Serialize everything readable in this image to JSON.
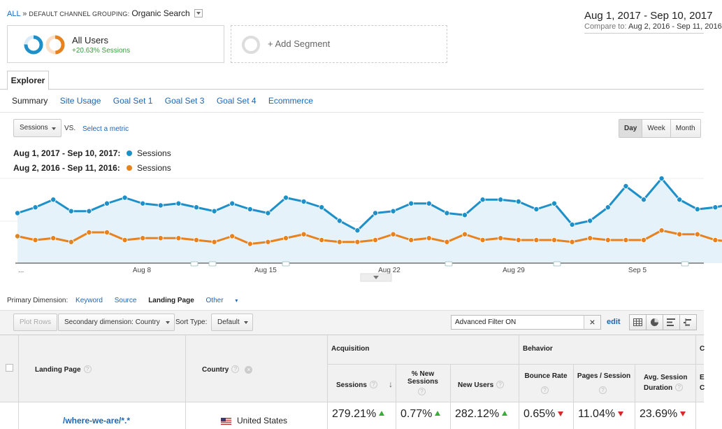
{
  "breadcrumb": {
    "all": "ALL",
    "sep": "»",
    "dimension": "DEFAULT CHANNEL GROUPING:",
    "value": "Organic Search"
  },
  "date_range": {
    "primary": "Aug 1, 2017 - Sep 10, 2017",
    "compare_label": "Compare to:",
    "compare_value": "Aug 2, 2016 - Sep 11, 2016"
  },
  "segments": {
    "all_users": {
      "label": "All Users",
      "sub": "+20.63% Sessions"
    },
    "add_label": "+ Add Segment"
  },
  "explorer_tab": "Explorer",
  "subtabs": [
    "Summary",
    "Site Usage",
    "Goal Set 1",
    "Goal Set 3",
    "Goal Set 4",
    "Ecommerce"
  ],
  "metric": {
    "selected": "Sessions",
    "vs": "VS.",
    "select_metric": "Select a metric"
  },
  "granularity": [
    "Day",
    "Week",
    "Month"
  ],
  "legend": [
    {
      "date": "Aug 1, 2017 - Sep 10, 2017:",
      "metric": "Sessions",
      "color": "#1f8fc8"
    },
    {
      "date": "Aug 2, 2016 - Sep 11, 2016:",
      "metric": "Sessions",
      "color": "#e8821e"
    }
  ],
  "chart_data": {
    "type": "line",
    "x_ticks": [
      "...",
      "Aug 8",
      "Aug 15",
      "Aug 22",
      "Aug 29",
      "Sep 5"
    ],
    "series": [
      {
        "name": "Sessions",
        "color": "#1f8fc8",
        "values": [
          26,
          29,
          33,
          27,
          27,
          31,
          34,
          31,
          30,
          31,
          29,
          27,
          31,
          28,
          26,
          34,
          32,
          29,
          22,
          17,
          26,
          27,
          31,
          31,
          26,
          25,
          33,
          33,
          32,
          28,
          31,
          20,
          22,
          29,
          40,
          33,
          44,
          33,
          28,
          29,
          31
        ]
      },
      {
        "name": "Sessions",
        "color": "#e8821e",
        "values": [
          14,
          12,
          13,
          11,
          16,
          16,
          12,
          13,
          13,
          13,
          12,
          11,
          14,
          10,
          11,
          13,
          15,
          12,
          11,
          11,
          12,
          15,
          12,
          13,
          11,
          15,
          12,
          13,
          12,
          12,
          12,
          11,
          13,
          12,
          12,
          12,
          17,
          15,
          15,
          12,
          11
        ]
      }
    ]
  },
  "primary_dimension": {
    "label": "Primary Dimension:",
    "options": [
      "Keyword",
      "Source",
      "Landing Page"
    ],
    "active": "Landing Page",
    "other": "Other"
  },
  "toolbar": {
    "plot_rows": "Plot Rows",
    "secondary_dimension": "Secondary dimension: Country",
    "sort_label": "Sort Type:",
    "sort_value": "Default",
    "filter": "Advanced Filter ON",
    "filter_clear": "×",
    "edit": "edit"
  },
  "table": {
    "col_landing": "Landing Page",
    "col_country": "Country",
    "group_acquisition": "Acquisition",
    "group_behavior": "Behavior",
    "group_conv": "C",
    "cols": [
      "Sessions",
      "% New Sessions",
      "New Users",
      "Bounce Rate",
      "Pages / Session",
      "Avg. Session Duration",
      "E C"
    ],
    "rows": [
      {
        "landing": "/where-we-are/*.*",
        "country": "United States",
        "sessions": "279.21%",
        "new_sessions": "0.77%",
        "new_users": "282.12%",
        "bounce": "0.65%",
        "pages": "11.04%",
        "duration": "23.69%"
      }
    ]
  }
}
